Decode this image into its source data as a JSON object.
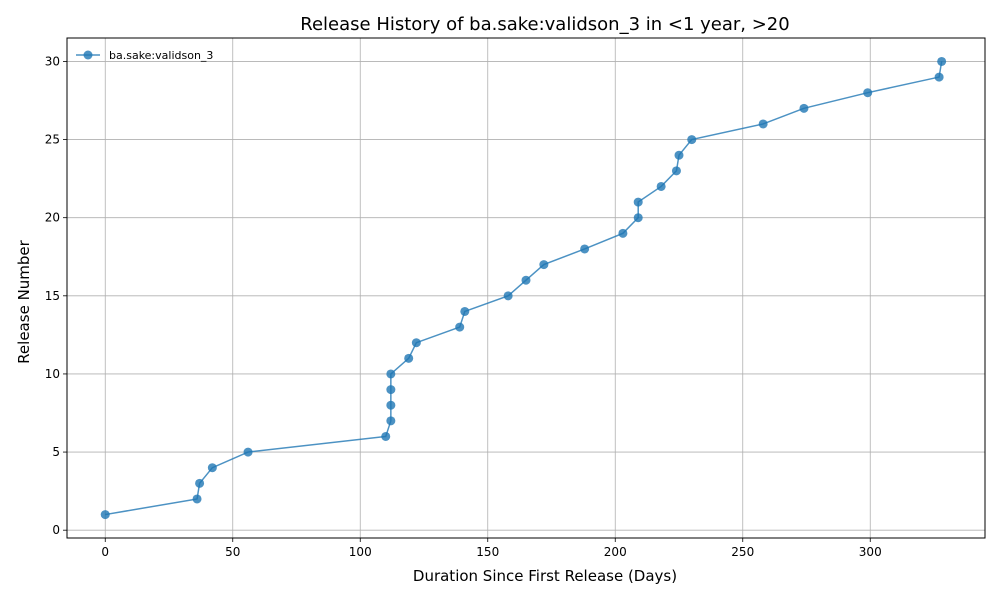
{
  "chart_data": {
    "type": "line",
    "title": "Release History of ba.sake:validson_3 in <1 year, >20",
    "xlabel": "Duration Since First Release (Days)",
    "ylabel": "Release Number",
    "xlim": [
      -15,
      345
    ],
    "ylim": [
      -0.5,
      31.5
    ],
    "xticks": [
      0,
      50,
      100,
      150,
      200,
      250,
      300
    ],
    "yticks": [
      0,
      5,
      10,
      15,
      20,
      25,
      30
    ],
    "grid": true,
    "legend": "upper-left",
    "series": [
      {
        "name": "ba.sake:validson_3",
        "color": "#1f77b4",
        "x": [
          0,
          36,
          37,
          42,
          56,
          110,
          112,
          112,
          112,
          112,
          119,
          122,
          139,
          141,
          158,
          165,
          172,
          188,
          203,
          209,
          209,
          218,
          224,
          225,
          230,
          258,
          274,
          299,
          327,
          328
        ],
        "y": [
          1,
          2,
          3,
          4,
          5,
          6,
          7,
          8,
          9,
          10,
          11,
          12,
          13,
          14,
          15,
          16,
          17,
          18,
          19,
          20,
          21,
          22,
          23,
          24,
          25,
          26,
          27,
          28,
          29,
          30
        ]
      }
    ]
  }
}
